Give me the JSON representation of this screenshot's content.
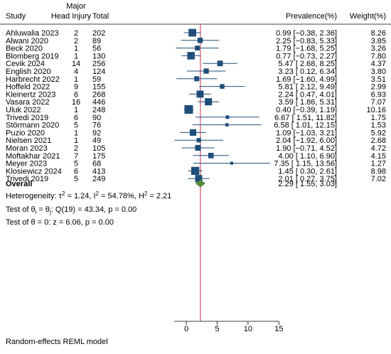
{
  "chart_data": {
    "type": "forest",
    "columns": {
      "study": "Study",
      "head_injury_line1": "Major",
      "head_injury_line2": "Head Injury",
      "total": "Total",
      "prevalence": "Prevalence(%)",
      "weight": "Weight(%)"
    },
    "studies": [
      {
        "study": "Ahluwalia 2023",
        "events": "2",
        "total": "202",
        "est": 0.99,
        "lo": -0.38,
        "hi": 2.36,
        "ci_text": "0.99 [−0.38, 2.36]",
        "weight": 8.26,
        "weight_text": "8.26"
      },
      {
        "study": "Alwani 2020",
        "events": "2",
        "total": "89",
        "est": 2.25,
        "lo": -0.83,
        "hi": 5.33,
        "ci_text": "2.25 [−0.83, 5.33]",
        "weight": 3.85,
        "weight_text": "3.85"
      },
      {
        "study": "Beck 2020",
        "events": "1",
        "total": "56",
        "est": 1.79,
        "lo": -1.68,
        "hi": 5.25,
        "ci_text": "1.79 [−1.68, 5.25]",
        "weight": 3.26,
        "weight_text": "3.26"
      },
      {
        "study": "Blomberg 2019",
        "events": "1",
        "total": "130",
        "est": 0.77,
        "lo": -0.73,
        "hi": 2.27,
        "ci_text": "0.77 [−0.73, 2.27]",
        "weight": 7.8,
        "weight_text": "7.80"
      },
      {
        "study": "Cevik 2024",
        "events": "14",
        "total": "256",
        "est": 5.47,
        "lo": 2.68,
        "hi": 8.25,
        "ci_text": "5.47 [ 2.68, 8.25]",
        "weight": 4.37,
        "weight_text": "4.37"
      },
      {
        "study": "English  2020",
        "events": "4",
        "total": "124",
        "est": 3.23,
        "lo": 0.12,
        "hi": 6.34,
        "ci_text": "3.23 [ 0.12, 6.34]",
        "weight": 3.8,
        "weight_text": "3.80"
      },
      {
        "study": "Harbrecht 2022",
        "events": "1",
        "total": "59",
        "est": 1.69,
        "lo": -1.6,
        "hi": 4.99,
        "ci_text": "1.69 [−1.60, 4.99]",
        "weight": 3.51,
        "weight_text": "3.51"
      },
      {
        "study": "Hoffeld 2022",
        "events": "9",
        "total": "155",
        "est": 5.81,
        "lo": 2.12,
        "hi": 9.49,
        "ci_text": "5.81 [ 2.12, 9.49]",
        "weight": 2.99,
        "weight_text": "2.99"
      },
      {
        "study": "Kleinertz 2023",
        "events": "6",
        "total": "268",
        "est": 2.24,
        "lo": 0.47,
        "hi": 4.01,
        "ci_text": "2.24 [ 0.47, 4.01]",
        "weight": 6.93,
        "weight_text": "6.93"
      },
      {
        "study": "Vasara 2022",
        "events": "16",
        "total": "446",
        "est": 3.59,
        "lo": 1.86,
        "hi": 5.31,
        "ci_text": "3.59 [ 1.86, 5.31]",
        "weight": 7.07,
        "weight_text": "7.07"
      },
      {
        "study": "Uluk 2022",
        "events": "1",
        "total": "248",
        "est": 0.4,
        "lo": -0.39,
        "hi": 1.19,
        "ci_text": "0.40 [−0.39, 1.19]",
        "weight": 10.16,
        "weight_text": "10.16"
      },
      {
        "study": "Trivedi 2019",
        "events": "6",
        "total": "90",
        "est": 6.67,
        "lo": 1.51,
        "hi": 11.82,
        "ci_text": "6.67 [ 1.51, 11.82]",
        "weight": 1.75,
        "weight_text": "1.75"
      },
      {
        "study": "Störmann 2020",
        "events": "5",
        "total": "76",
        "est": 6.58,
        "lo": 1.01,
        "hi": 12.15,
        "ci_text": "6.58 [ 1.01, 12.15]",
        "weight": 1.53,
        "weight_text": "1.53"
      },
      {
        "study": "Puzio 2020",
        "events": "1",
        "total": "92",
        "est": 1.09,
        "lo": -1.03,
        "hi": 3.21,
        "ci_text": "1.09 [−1.03, 3.21]",
        "weight": 5.92,
        "weight_text": "5.92"
      },
      {
        "study": "Nielsen 2021",
        "events": "1",
        "total": "49",
        "est": 2.04,
        "lo": -1.92,
        "hi": 6.0,
        "ci_text": "2.04 [−1.92, 6.00]",
        "weight": 2.68,
        "weight_text": "2.68"
      },
      {
        "study": "Moran 2023",
        "events": "2",
        "total": "105",
        "est": 1.9,
        "lo": -0.71,
        "hi": 4.52,
        "ci_text": "1.90 [−0.71, 4.52]",
        "weight": 4.72,
        "weight_text": "4.72"
      },
      {
        "study": "Moftakhar 2021",
        "events": "7",
        "total": "175",
        "est": 4.0,
        "lo": 1.1,
        "hi": 6.9,
        "ci_text": "4.00 [ 1.10, 6.90]",
        "weight": 4.15,
        "weight_text": "4.15"
      },
      {
        "study": "Meyer 2023",
        "events": "5",
        "total": "68",
        "est": 7.35,
        "lo": 1.15,
        "hi": 13.56,
        "ci_text": "7.35 [ 1.15, 13.56]",
        "weight": 1.27,
        "weight_text": "1.27"
      },
      {
        "study": "Klosiewicz 2024",
        "events": "6",
        "total": "413",
        "est": 1.45,
        "lo": 0.3,
        "hi": 2.61,
        "ci_text": "1.45 [ 0.30, 2.61]",
        "weight": 8.98,
        "weight_text": "8.98"
      },
      {
        "study": "Trivedi 2019",
        "events": "5",
        "total": "249",
        "est": 2.01,
        "lo": 0.27,
        "hi": 3.75,
        "ci_text": "2.01 [ 0.27, 3.75]",
        "weight": 7.02,
        "weight_text": "7.02"
      }
    ],
    "overall": {
      "label": "Overall",
      "est": 2.29,
      "lo": 1.55,
      "hi": 3.03,
      "ci_text": "2.29 [ 1.55, 3.03]"
    },
    "heterogeneity": {
      "prefix": "Heterogeneity: τ",
      "sup1": "2",
      "mid1": " = 1.24, I",
      "sup2": "2",
      "mid2": " = 54.78%, H",
      "sup3": "2",
      "end": " = 2.21"
    },
    "test_homogeneity": {
      "prefix": "Test of θ",
      "sub1": "i",
      "mid": " = θ",
      "sub2": "j",
      "end": ": Q(19) = 43.34, p = 0.00"
    },
    "test_overall": "Test of θ = 0: z = 6.06, p = 0.00",
    "footnote": "Random-effects REML model",
    "x_axis": {
      "min": -2,
      "max": 15,
      "ticks": [
        0,
        5,
        10,
        15
      ],
      "tick_labels": [
        "0",
        "5",
        "10",
        "15"
      ]
    },
    "reference_line": 2.29,
    "colors": {
      "marker": "#1f4e79",
      "ci_line": "#1f4e79",
      "diamond": "#5a8a3a",
      "ref_line": "#c0304a"
    }
  }
}
